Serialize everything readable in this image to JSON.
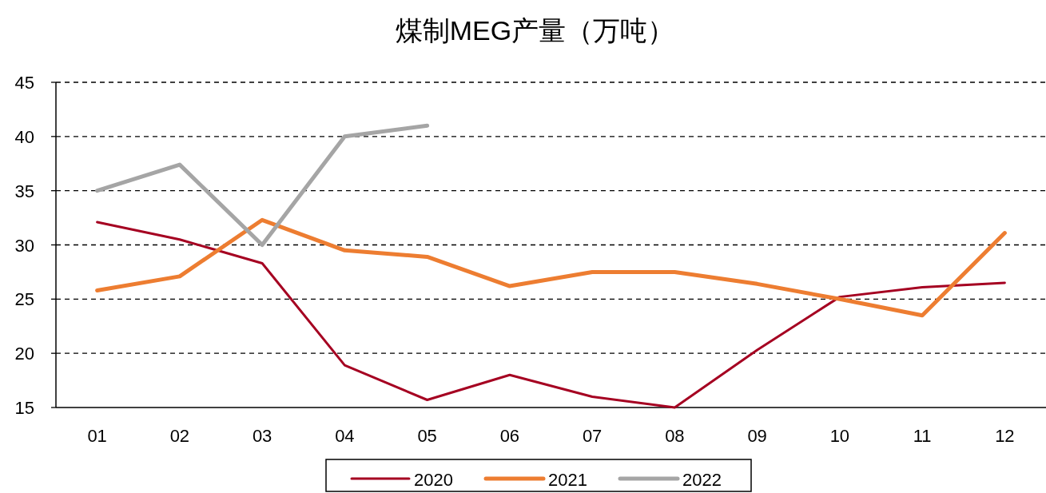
{
  "chart_data": {
    "type": "line",
    "title": "煤制MEG产量（万吨）",
    "categories": [
      "01",
      "02",
      "03",
      "04",
      "05",
      "06",
      "07",
      "08",
      "09",
      "10",
      "11",
      "12"
    ],
    "series": [
      {
        "name": "2020",
        "color": "#a50021",
        "values": [
          32.1,
          30.5,
          28.3,
          18.9,
          15.7,
          18.0,
          16.0,
          15.0,
          20.3,
          25.2,
          26.1,
          26.5
        ]
      },
      {
        "name": "2021",
        "color": "#ed7d31",
        "values": [
          25.8,
          27.1,
          32.3,
          29.5,
          28.9,
          26.2,
          27.5,
          27.5,
          26.4,
          25.0,
          23.5,
          31.1
        ]
      },
      {
        "name": "2022",
        "color": "#a5a5a5",
        "values": [
          35.0,
          37.4,
          30.0,
          40.0,
          41.0,
          null,
          null,
          null,
          null,
          null,
          null,
          null
        ]
      }
    ],
    "ylim": [
      15,
      45
    ],
    "yticks": [
      15,
      20,
      25,
      30,
      35,
      40,
      45
    ],
    "grid": "y",
    "legend": "bottom",
    "marker": "none",
    "line_style": "solid"
  }
}
